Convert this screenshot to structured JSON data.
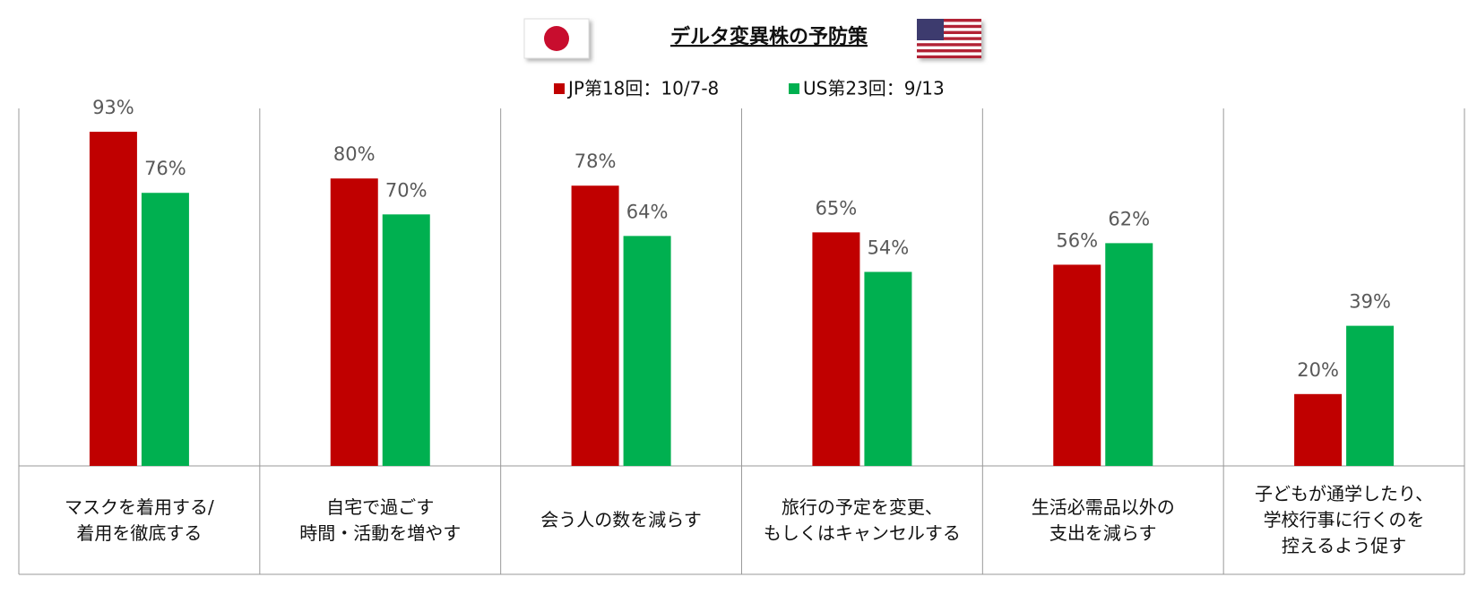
{
  "chart_data": {
    "type": "bar",
    "title": "デルタ変異株の予防策",
    "categories": [
      "マスクを着用する/\n着用を徹底する",
      "自宅で過ごす\n時間・活動を増やす",
      "会う人の数を減らす",
      "旅行の予定を変更、\nもしくはキャンセルする",
      "生活必需品以外の\n支出を減らす",
      "子どもが通学したり、\n学校行事に行くのを\n控えるよう促す"
    ],
    "series": [
      {
        "name": "JP第18回：10/7-8",
        "color": "#c00000",
        "values": [
          93,
          80,
          78,
          65,
          56,
          20
        ],
        "value_labels": [
          "93%",
          "80%",
          "78%",
          "65%",
          "56%",
          "20%"
        ]
      },
      {
        "name": "US第23回：9/13",
        "color": "#00b050",
        "values": [
          76,
          70,
          64,
          54,
          62,
          39
        ],
        "value_labels": [
          "76%",
          "70%",
          "64%",
          "54%",
          "62%",
          "39%"
        ]
      }
    ],
    "ylim": [
      0,
      100
    ]
  }
}
